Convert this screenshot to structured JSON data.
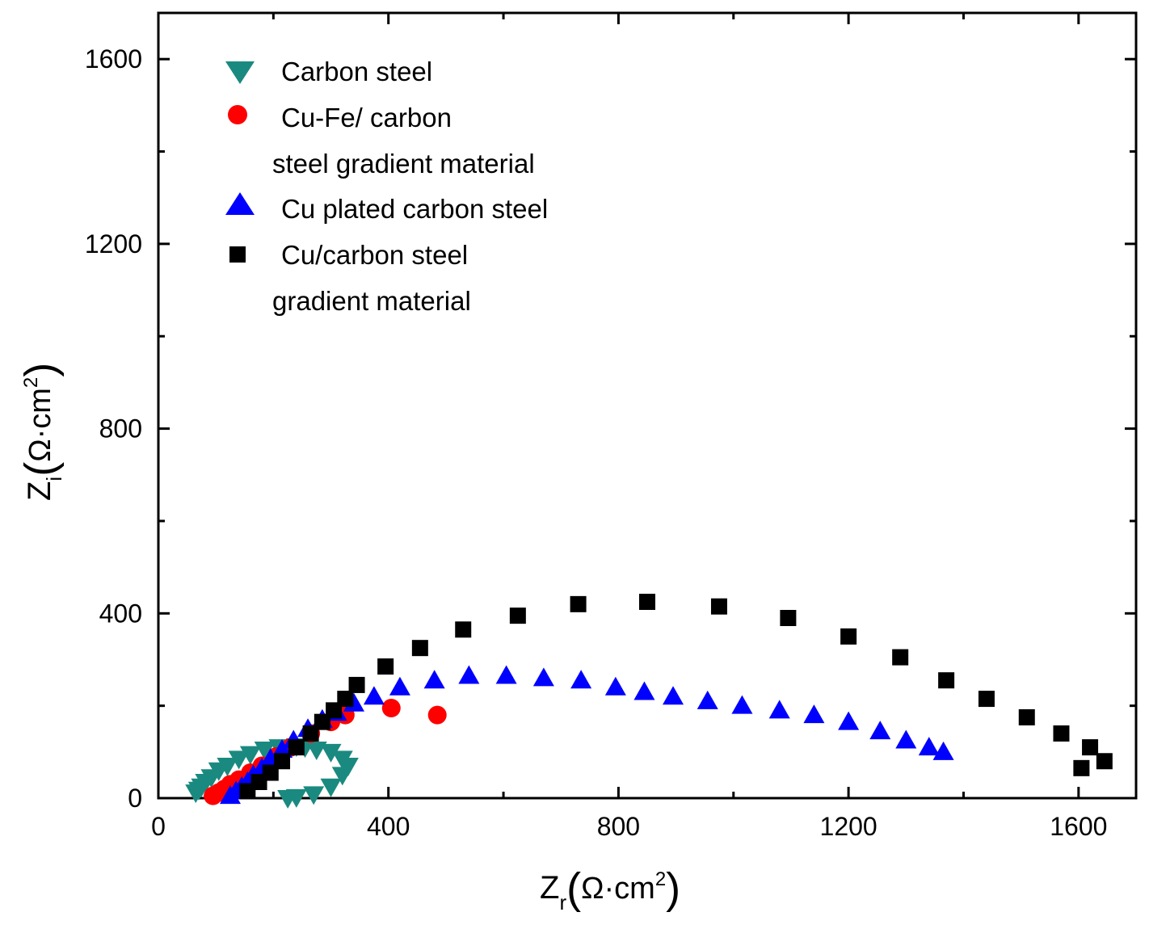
{
  "chart_data": {
    "type": "scatter",
    "title": "",
    "xlabel": {
      "main": "Z",
      "sub": "r",
      "unit_open": "(",
      "unit": "Ω·cm",
      "sup": "2",
      "unit_close": ")"
    },
    "ylabel": {
      "main": "Z",
      "sub": "i",
      "unit_open": "(",
      "unit": "Ω·cm",
      "sup": "2",
      "unit_close": ")"
    },
    "xlim": [
      0,
      1700
    ],
    "ylim": [
      0,
      1700
    ],
    "xticks": [
      0,
      400,
      800,
      1200,
      1600
    ],
    "yticks": [
      0,
      400,
      800,
      1200,
      1600
    ],
    "xtick_labels": [
      "0",
      "400",
      "800",
      "1200",
      "1600"
    ],
    "ytick_labels": [
      "0",
      "400",
      "800",
      "1200",
      "1600"
    ],
    "legend": {
      "position": "top-left",
      "entries": [
        {
          "series": 0,
          "lines": [
            "Carbon steel"
          ]
        },
        {
          "series": 1,
          "lines": [
            "Cu-Fe/ carbon",
            "steel gradient material"
          ]
        },
        {
          "series": 2,
          "lines": [
            "Cu plated carbon steel"
          ]
        },
        {
          "series": 3,
          "lines": [
            "Cu/carbon steel",
            "gradient material"
          ]
        }
      ]
    },
    "series": [
      {
        "name": "Carbon steel",
        "marker": "triangle-down",
        "color": "#1a8a80",
        "points": [
          [
            65,
            12
          ],
          [
            70,
            18
          ],
          [
            75,
            25
          ],
          [
            82,
            35
          ],
          [
            92,
            45
          ],
          [
            105,
            60
          ],
          [
            120,
            70
          ],
          [
            140,
            85
          ],
          [
            160,
            95
          ],
          [
            185,
            105
          ],
          [
            210,
            110
          ],
          [
            240,
            112
          ],
          [
            255,
            110
          ],
          [
            275,
            105
          ],
          [
            300,
            100
          ],
          [
            320,
            85
          ],
          [
            330,
            70
          ],
          [
            320,
            50
          ],
          [
            300,
            25
          ],
          [
            270,
            8
          ],
          [
            240,
            2
          ],
          [
            225,
            0
          ]
        ]
      },
      {
        "name": "Cu-Fe/ carbon steel gradient material",
        "marker": "circle",
        "color": "#ff0000",
        "points": [
          [
            95,
            5
          ],
          [
            105,
            12
          ],
          [
            115,
            20
          ],
          [
            125,
            30
          ],
          [
            140,
            40
          ],
          [
            160,
            55
          ],
          [
            180,
            70
          ],
          [
            205,
            90
          ],
          [
            230,
            110
          ],
          [
            265,
            140
          ],
          [
            300,
            165
          ],
          [
            325,
            180
          ],
          [
            405,
            195
          ],
          [
            485,
            180
          ]
        ]
      },
      {
        "name": "Cu plated carbon steel",
        "marker": "triangle-up",
        "color": "#0000ff",
        "points": [
          [
            125,
            5
          ],
          [
            135,
            15
          ],
          [
            145,
            25
          ],
          [
            155,
            35
          ],
          [
            165,
            50
          ],
          [
            180,
            65
          ],
          [
            195,
            85
          ],
          [
            215,
            105
          ],
          [
            235,
            125
          ],
          [
            260,
            150
          ],
          [
            285,
            170
          ],
          [
            310,
            185
          ],
          [
            340,
            205
          ],
          [
            375,
            220
          ],
          [
            420,
            240
          ],
          [
            480,
            255
          ],
          [
            540,
            265
          ],
          [
            605,
            265
          ],
          [
            670,
            260
          ],
          [
            735,
            255
          ],
          [
            795,
            240
          ],
          [
            845,
            230
          ],
          [
            895,
            220
          ],
          [
            955,
            210
          ],
          [
            1015,
            200
          ],
          [
            1080,
            190
          ],
          [
            1140,
            180
          ],
          [
            1200,
            165
          ],
          [
            1255,
            145
          ],
          [
            1300,
            125
          ],
          [
            1340,
            110
          ],
          [
            1365,
            100
          ]
        ]
      },
      {
        "name": "Cu/carbon steel gradient material",
        "marker": "square",
        "color": "#000000",
        "points": [
          [
            155,
            15
          ],
          [
            175,
            35
          ],
          [
            195,
            55
          ],
          [
            215,
            80
          ],
          [
            240,
            110
          ],
          [
            265,
            140
          ],
          [
            285,
            165
          ],
          [
            305,
            190
          ],
          [
            325,
            215
          ],
          [
            345,
            245
          ],
          [
            395,
            285
          ],
          [
            455,
            325
          ],
          [
            530,
            365
          ],
          [
            625,
            395
          ],
          [
            730,
            420
          ],
          [
            850,
            425
          ],
          [
            975,
            415
          ],
          [
            1095,
            390
          ],
          [
            1200,
            350
          ],
          [
            1290,
            305
          ],
          [
            1370,
            255
          ],
          [
            1440,
            215
          ],
          [
            1510,
            175
          ],
          [
            1570,
            140
          ],
          [
            1605,
            65
          ],
          [
            1620,
            110
          ],
          [
            1645,
            80
          ]
        ]
      }
    ]
  }
}
